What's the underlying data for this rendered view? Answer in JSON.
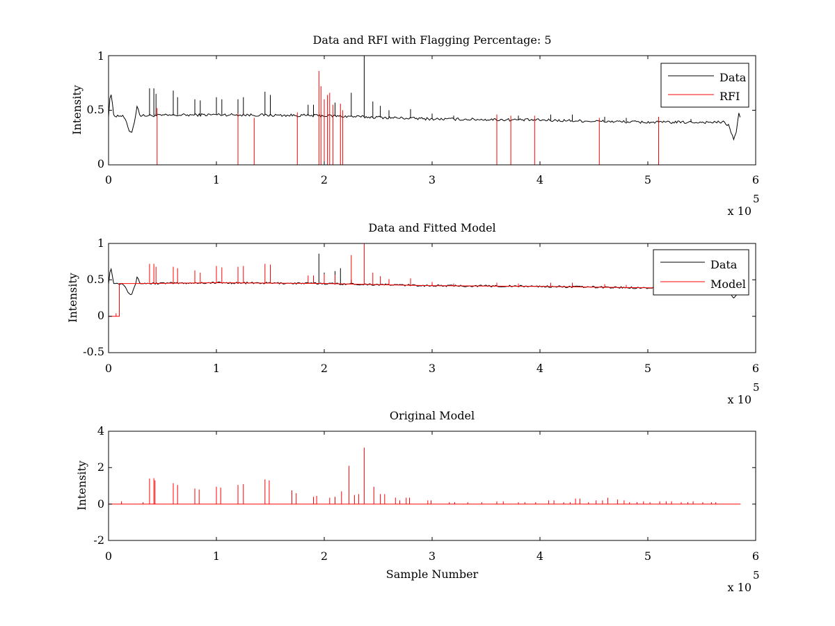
{
  "chart_data": [
    {
      "type": "line",
      "title": "Data and RFI with Flagging Percentage: 5",
      "xlabel": "",
      "ylabel": "Intensity",
      "xlim": [
        0,
        600000
      ],
      "ylim": [
        0,
        1
      ],
      "xticks": [
        "0",
        "1",
        "2",
        "3",
        "4",
        "5",
        "6"
      ],
      "yticks": [
        "0",
        "0.5",
        "1"
      ],
      "x_multiplier": "x 10",
      "x_exponent": "5",
      "legend_position": "top-right",
      "grid": false,
      "series": [
        {
          "name": "Data",
          "color": "#000000",
          "baseline": [
            [
              0,
              0.45
            ],
            [
              1000,
              0.6
            ],
            [
              2000,
              0.66
            ],
            [
              3000,
              0.62
            ],
            [
              4000,
              0.5
            ],
            [
              5000,
              0.45
            ],
            [
              12000,
              0.45
            ],
            [
              15000,
              0.43
            ],
            [
              18000,
              0.34
            ],
            [
              20000,
              0.3
            ],
            [
              22000,
              0.31
            ],
            [
              24000,
              0.4
            ],
            [
              26000,
              0.5
            ],
            [
              27000,
              0.57
            ],
            [
              28000,
              0.48
            ],
            [
              30000,
              0.45
            ],
            [
              100000,
              0.46
            ],
            [
              200000,
              0.45
            ],
            [
              300000,
              0.42
            ],
            [
              400000,
              0.41
            ],
            [
              500000,
              0.39
            ],
            [
              570000,
              0.39
            ],
            [
              575000,
              0.36
            ],
            [
              578000,
              0.28
            ],
            [
              580000,
              0.23
            ],
            [
              582000,
              0.3
            ],
            [
              584000,
              0.45
            ],
            [
              585000,
              0.5
            ],
            [
              586000,
              0.38
            ]
          ],
          "spikes": [
            [
              38000,
              0.7
            ],
            [
              42000,
              0.7
            ],
            [
              44000,
              0.65
            ],
            [
              60000,
              0.68
            ],
            [
              64000,
              0.62
            ],
            [
              80000,
              0.6
            ],
            [
              85000,
              0.59
            ],
            [
              100000,
              0.62
            ],
            [
              105000,
              0.6
            ],
            [
              120000,
              0.6
            ],
            [
              125000,
              0.62
            ],
            [
              145000,
              0.67
            ],
            [
              150000,
              0.64
            ],
            [
              185000,
              0.55
            ],
            [
              190000,
              0.55
            ],
            [
              200000,
              0.59
            ],
            [
              210000,
              0.57
            ],
            [
              225000,
              0.66
            ],
            [
              237000,
              1.0
            ],
            [
              245000,
              0.58
            ],
            [
              252000,
              0.54
            ],
            [
              260000,
              0.5
            ],
            [
              280000,
              0.51
            ],
            [
              300000,
              0.47
            ],
            [
              320000,
              0.45
            ],
            [
              360000,
              0.46
            ],
            [
              380000,
              0.45
            ],
            [
              410000,
              0.46
            ],
            [
              430000,
              0.46
            ],
            [
              460000,
              0.44
            ],
            [
              480000,
              0.43
            ],
            [
              510000,
              0.43
            ],
            [
              540000,
              0.42
            ]
          ]
        },
        {
          "name": "RFI",
          "color": "#ff0000",
          "spikes": [
            [
              45000,
              0.52
            ],
            [
              120000,
              0.47
            ],
            [
              135000,
              0.43
            ],
            [
              175000,
              0.48
            ],
            [
              195000,
              0.86
            ],
            [
              197000,
              0.72
            ],
            [
              200000,
              0.6
            ],
            [
              203000,
              0.64
            ],
            [
              205000,
              0.66
            ],
            [
              208000,
              0.55
            ],
            [
              215000,
              0.56
            ],
            [
              217000,
              0.5
            ],
            [
              360000,
              0.46
            ],
            [
              373000,
              0.45
            ],
            [
              395000,
              0.45
            ],
            [
              455000,
              0.43
            ],
            [
              510000,
              0.44
            ]
          ]
        }
      ]
    },
    {
      "type": "line",
      "title": "Data and Fitted Model",
      "xlabel": "",
      "ylabel": "Intensity",
      "xlim": [
        0,
        600000
      ],
      "ylim": [
        -0.5,
        1
      ],
      "xticks": [
        "0",
        "1",
        "2",
        "3",
        "4",
        "5",
        "6"
      ],
      "yticks": [
        "-0.5",
        "0",
        "0.5",
        "1"
      ],
      "x_multiplier": "x 10",
      "x_exponent": "5",
      "legend_position": "top-right",
      "grid": false,
      "series": [
        {
          "name": "Data",
          "color": "#000000",
          "baseline": [
            [
              0,
              0.45
            ],
            [
              1000,
              0.6
            ],
            [
              2000,
              0.66
            ],
            [
              3000,
              0.62
            ],
            [
              4000,
              0.5
            ],
            [
              5000,
              0.45
            ],
            [
              12000,
              0.45
            ],
            [
              15000,
              0.43
            ],
            [
              18000,
              0.34
            ],
            [
              20000,
              0.3
            ],
            [
              22000,
              0.31
            ],
            [
              24000,
              0.4
            ],
            [
              26000,
              0.5
            ],
            [
              27000,
              0.57
            ],
            [
              28000,
              0.48
            ],
            [
              30000,
              0.45
            ],
            [
              100000,
              0.46
            ],
            [
              200000,
              0.45
            ],
            [
              300000,
              0.42
            ],
            [
              400000,
              0.41
            ],
            [
              500000,
              0.39
            ],
            [
              570000,
              0.39
            ],
            [
              575000,
              0.36
            ],
            [
              578000,
              0.28
            ],
            [
              580000,
              0.23
            ],
            [
              582000,
              0.3
            ],
            [
              584000,
              0.45
            ],
            [
              586000,
              0.38
            ]
          ],
          "spikes": [
            [
              195000,
              0.86
            ],
            [
              200000,
              0.6
            ],
            [
              210000,
              0.62
            ],
            [
              215000,
              0.66
            ],
            [
              225000,
              0.5
            ]
          ]
        },
        {
          "name": "Model",
          "color": "#ff0000",
          "baseline": [
            [
              0,
              0
            ],
            [
              10000,
              0
            ],
            [
              10000,
              0.45
            ],
            [
              30000,
              0.45
            ],
            [
              100000,
              0.46
            ],
            [
              200000,
              0.45
            ],
            [
              300000,
              0.42
            ],
            [
              400000,
              0.41
            ],
            [
              500000,
              0.39
            ],
            [
              586000,
              0.39
            ]
          ],
          "spikes": [
            [
              7000,
              0.04
            ],
            [
              38000,
              0.72
            ],
            [
              42000,
              0.72
            ],
            [
              44000,
              0.68
            ],
            [
              60000,
              0.68
            ],
            [
              64000,
              0.66
            ],
            [
              80000,
              0.63
            ],
            [
              85000,
              0.6
            ],
            [
              100000,
              0.69
            ],
            [
              105000,
              0.67
            ],
            [
              120000,
              0.68
            ],
            [
              125000,
              0.69
            ],
            [
              145000,
              0.72
            ],
            [
              150000,
              0.71
            ],
            [
              185000,
              0.56
            ],
            [
              190000,
              0.56
            ],
            [
              200000,
              0.58
            ],
            [
              210000,
              0.57
            ],
            [
              225000,
              0.84
            ],
            [
              237000,
              1.0
            ],
            [
              245000,
              0.6
            ],
            [
              252000,
              0.55
            ],
            [
              260000,
              0.51
            ],
            [
              280000,
              0.52
            ],
            [
              300000,
              0.47
            ],
            [
              320000,
              0.45
            ],
            [
              360000,
              0.46
            ],
            [
              380000,
              0.45
            ],
            [
              410000,
              0.46
            ],
            [
              430000,
              0.46
            ],
            [
              460000,
              0.44
            ],
            [
              480000,
              0.43
            ],
            [
              510000,
              0.43
            ],
            [
              540000,
              0.42
            ]
          ]
        }
      ]
    },
    {
      "type": "line",
      "title": "Original Model",
      "xlabel": "Sample Number",
      "ylabel": "Intensity",
      "xlim": [
        0,
        600000
      ],
      "ylim": [
        -2,
        4
      ],
      "xticks": [
        "0",
        "1",
        "2",
        "3",
        "4",
        "5",
        "6"
      ],
      "yticks": [
        "-2",
        "0",
        "2",
        "4"
      ],
      "x_multiplier": "x 10",
      "x_exponent": "5",
      "grid": false,
      "series": [
        {
          "name": "",
          "color": "#ff0000",
          "baseline": [
            [
              0,
              0
            ],
            [
              586000,
              0
            ]
          ],
          "spikes": [
            [
              12000,
              0.15
            ],
            [
              32000,
              0.1
            ],
            [
              38000,
              1.4
            ],
            [
              42000,
              1.42
            ],
            [
              43000,
              1.3
            ],
            [
              60000,
              1.15
            ],
            [
              64000,
              1.05
            ],
            [
              80000,
              0.85
            ],
            [
              84000,
              0.8
            ],
            [
              100000,
              0.95
            ],
            [
              104000,
              0.9
            ],
            [
              120000,
              1.05
            ],
            [
              125000,
              1.1
            ],
            [
              145000,
              1.35
            ],
            [
              149000,
              1.3
            ],
            [
              170000,
              0.75
            ],
            [
              174000,
              0.6
            ],
            [
              190000,
              0.4
            ],
            [
              193000,
              0.45
            ],
            [
              205000,
              0.35
            ],
            [
              210000,
              0.4
            ],
            [
              216000,
              0.7
            ],
            [
              223000,
              2.1
            ],
            [
              228000,
              0.5
            ],
            [
              232000,
              0.55
            ],
            [
              237000,
              3.1
            ],
            [
              246000,
              0.95
            ],
            [
              252000,
              0.55
            ],
            [
              256000,
              0.55
            ],
            [
              266000,
              0.35
            ],
            [
              270000,
              0.2
            ],
            [
              276000,
              0.35
            ],
            [
              279000,
              0.35
            ],
            [
              296000,
              0.2
            ],
            [
              299000,
              0.2
            ],
            [
              316000,
              0.1
            ],
            [
              321000,
              0.1
            ],
            [
              333000,
              0.1
            ],
            [
              346000,
              0.1
            ],
            [
              360000,
              0.15
            ],
            [
              366000,
              0.15
            ],
            [
              380000,
              0.1
            ],
            [
              386000,
              0.1
            ],
            [
              396000,
              0.1
            ],
            [
              408000,
              0.2
            ],
            [
              413000,
              0.2
            ],
            [
              422000,
              0.1
            ],
            [
              428000,
              0.1
            ],
            [
              433000,
              0.3
            ],
            [
              437000,
              0.3
            ],
            [
              445000,
              0.1
            ],
            [
              452000,
              0.2
            ],
            [
              458000,
              0.2
            ],
            [
              463000,
              0.35
            ],
            [
              472000,
              0.25
            ],
            [
              478000,
              0.2
            ],
            [
              483000,
              0.1
            ],
            [
              490000,
              0.1
            ],
            [
              496000,
              0.15
            ],
            [
              502000,
              0.1
            ],
            [
              511000,
              0.15
            ],
            [
              517000,
              0.15
            ],
            [
              522000,
              0.15
            ],
            [
              531000,
              0.1
            ],
            [
              537000,
              0.1
            ],
            [
              542000,
              0.15
            ],
            [
              551000,
              0.1
            ],
            [
              559000,
              0.1
            ],
            [
              563000,
              0.1
            ]
          ]
        }
      ]
    }
  ]
}
